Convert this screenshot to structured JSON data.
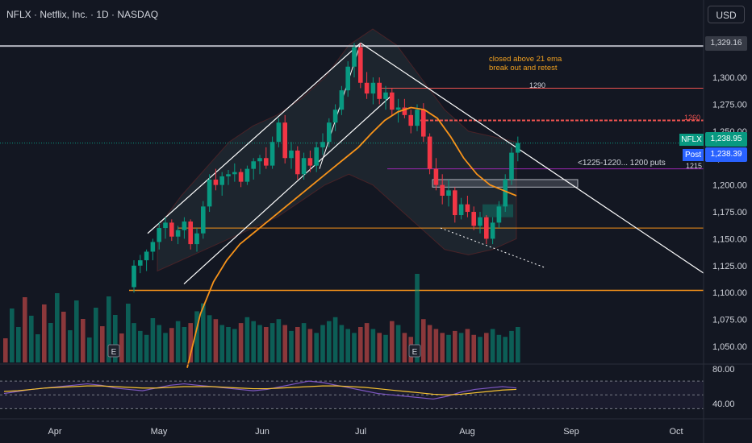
{
  "header": {
    "symbol_title": "NFLX · Netflix, Inc. · 1D · NASDAQ",
    "currency_button": "USD"
  },
  "annotations": {
    "ema_note_line1": "closed above 21 ema",
    "ema_note_line2": "break out and retest",
    "puts_note": "<1225-1220... 1200 puts",
    "level_1290": "1290",
    "level_1260": "1260",
    "level_1215": "1215"
  },
  "price_tags": {
    "high_label": "1,329.16",
    "nflx_name": "NFLX",
    "nflx_value": "1,238.95",
    "post_name": "Post",
    "post_value": "1,238.39"
  },
  "chart_data": {
    "type": "candlestick",
    "y_ticks": [
      "1,300.00",
      "1,275.00",
      "1,250.00",
      "1,225.00",
      "1,200.00",
      "1,175.00",
      "1,150.00",
      "1,125.00",
      "1,100.00",
      "1,075.00",
      "1,050.00"
    ],
    "rsi_ticks": [
      "80.00",
      "40.00"
    ],
    "x_ticks": [
      "Apr",
      "May",
      "Jun",
      "Jul",
      "Aug",
      "Sep",
      "Oct"
    ],
    "earnings_markers": [
      "E",
      "E"
    ],
    "candles": [
      [
        1105,
        1130,
        1100,
        1125
      ],
      [
        1125,
        1135,
        1118,
        1130
      ],
      [
        1130,
        1140,
        1120,
        1138
      ],
      [
        1138,
        1150,
        1130,
        1147
      ],
      [
        1147,
        1165,
        1140,
        1160
      ],
      [
        1160,
        1170,
        1150,
        1165
      ],
      [
        1165,
        1168,
        1148,
        1152
      ],
      [
        1152,
        1162,
        1145,
        1158
      ],
      [
        1158,
        1170,
        1150,
        1166
      ],
      [
        1166,
        1168,
        1140,
        1145
      ],
      [
        1145,
        1160,
        1138,
        1155
      ],
      [
        1155,
        1185,
        1150,
        1180
      ],
      [
        1180,
        1210,
        1175,
        1205
      ],
      [
        1205,
        1215,
        1195,
        1200
      ],
      [
        1200,
        1212,
        1190,
        1208
      ],
      [
        1208,
        1214,
        1200,
        1210
      ],
      [
        1210,
        1220,
        1203,
        1212
      ],
      [
        1212,
        1215,
        1198,
        1203
      ],
      [
        1203,
        1218,
        1200,
        1215
      ],
      [
        1215,
        1225,
        1205,
        1222
      ],
      [
        1222,
        1228,
        1210,
        1225
      ],
      [
        1225,
        1235,
        1215,
        1218
      ],
      [
        1218,
        1245,
        1215,
        1240
      ],
      [
        1240,
        1262,
        1235,
        1258
      ],
      [
        1258,
        1265,
        1220,
        1225
      ],
      [
        1225,
        1240,
        1215,
        1232
      ],
      [
        1232,
        1236,
        1205,
        1210
      ],
      [
        1210,
        1230,
        1205,
        1225
      ],
      [
        1225,
        1232,
        1212,
        1218
      ],
      [
        1218,
        1240,
        1212,
        1235
      ],
      [
        1235,
        1248,
        1228,
        1240
      ],
      [
        1240,
        1262,
        1235,
        1258
      ],
      [
        1258,
        1275,
        1250,
        1270
      ],
      [
        1270,
        1292,
        1265,
        1288
      ],
      [
        1288,
        1315,
        1282,
        1310
      ],
      [
        1310,
        1332,
        1300,
        1328
      ],
      [
        1328,
        1332,
        1290,
        1295
      ],
      [
        1295,
        1305,
        1280,
        1285
      ],
      [
        1285,
        1300,
        1275,
        1295
      ],
      [
        1295,
        1300,
        1275,
        1280
      ],
      [
        1280,
        1292,
        1270,
        1286
      ],
      [
        1286,
        1290,
        1265,
        1270
      ],
      [
        1270,
        1280,
        1258,
        1272
      ],
      [
        1272,
        1280,
        1262,
        1265
      ],
      [
        1265,
        1270,
        1248,
        1255
      ],
      [
        1255,
        1275,
        1250,
        1270
      ],
      [
        1270,
        1276,
        1240,
        1245
      ],
      [
        1245,
        1248,
        1210,
        1215
      ],
      [
        1215,
        1225,
        1195,
        1200
      ],
      [
        1200,
        1210,
        1182,
        1190
      ],
      [
        1190,
        1205,
        1180,
        1195
      ],
      [
        1195,
        1198,
        1165,
        1172
      ],
      [
        1172,
        1188,
        1168,
        1182
      ],
      [
        1182,
        1190,
        1170,
        1175
      ],
      [
        1175,
        1180,
        1158,
        1162
      ],
      [
        1162,
        1175,
        1155,
        1170
      ],
      [
        1170,
        1172,
        1145,
        1150
      ],
      [
        1150,
        1170,
        1145,
        1165
      ],
      [
        1165,
        1185,
        1160,
        1180
      ],
      [
        1180,
        1210,
        1175,
        1205
      ],
      [
        1205,
        1235,
        1200,
        1230
      ],
      [
        1230,
        1245,
        1222,
        1238.95
      ]
    ],
    "ema21": [
      1030,
      1080,
      1110,
      1130,
      1145,
      1155,
      1165,
      1175,
      1185,
      1195,
      1205,
      1215,
      1225,
      1235,
      1248,
      1260,
      1268,
      1272,
      1270,
      1262,
      1245,
      1225,
      1210,
      1200,
      1195,
      1190
    ],
    "bands_upper": [
      1160,
      1190,
      1215,
      1240,
      1255,
      1265,
      1280,
      1300,
      1330,
      1345,
      1330,
      1300,
      1270,
      1250,
      1245,
      1240
    ],
    "bands_lower": [
      1120,
      1130,
      1140,
      1150,
      1160,
      1170,
      1185,
      1200,
      1210,
      1200,
      1180,
      1160,
      1140,
      1135,
      1140,
      1150
    ],
    "volume": [
      40,
      32,
      28,
      45,
      38,
      30,
      35,
      42,
      36,
      40,
      52,
      60,
      48,
      44,
      38,
      36,
      34,
      40,
      46,
      42,
      38,
      36,
      40,
      44,
      38,
      32,
      36,
      40,
      34,
      30,
      38,
      42,
      46,
      38,
      34,
      30,
      36,
      40,
      34,
      30,
      28,
      42,
      38,
      30,
      26,
      90,
      44,
      38,
      34,
      30,
      28,
      32,
      30,
      34,
      28,
      26,
      30,
      34,
      28,
      26,
      32,
      36
    ],
    "rsi": [
      52,
      55,
      58,
      60,
      62,
      64,
      66,
      64,
      60,
      58,
      56,
      60,
      64,
      66,
      64,
      62,
      60,
      58,
      56,
      58,
      62,
      66,
      70,
      68,
      64,
      60,
      56,
      52,
      50,
      48,
      46,
      44,
      48,
      54,
      58,
      60,
      62,
      60
    ],
    "rsi_ma": [
      55,
      56,
      58,
      60,
      61,
      62,
      63,
      63,
      62,
      61,
      60,
      60,
      61,
      62,
      62,
      62,
      61,
      60,
      59,
      59,
      60,
      61,
      62,
      63,
      63,
      62,
      61,
      59,
      57,
      55,
      53,
      51,
      50,
      51,
      53,
      55,
      57,
      58
    ],
    "levels": [
      1329.16,
      1290,
      1260,
      1238.95,
      1215,
      1160,
      1102
    ],
    "ylim": [
      1035,
      1345
    ],
    "rsi_ylim": [
      20,
      90
    ]
  }
}
